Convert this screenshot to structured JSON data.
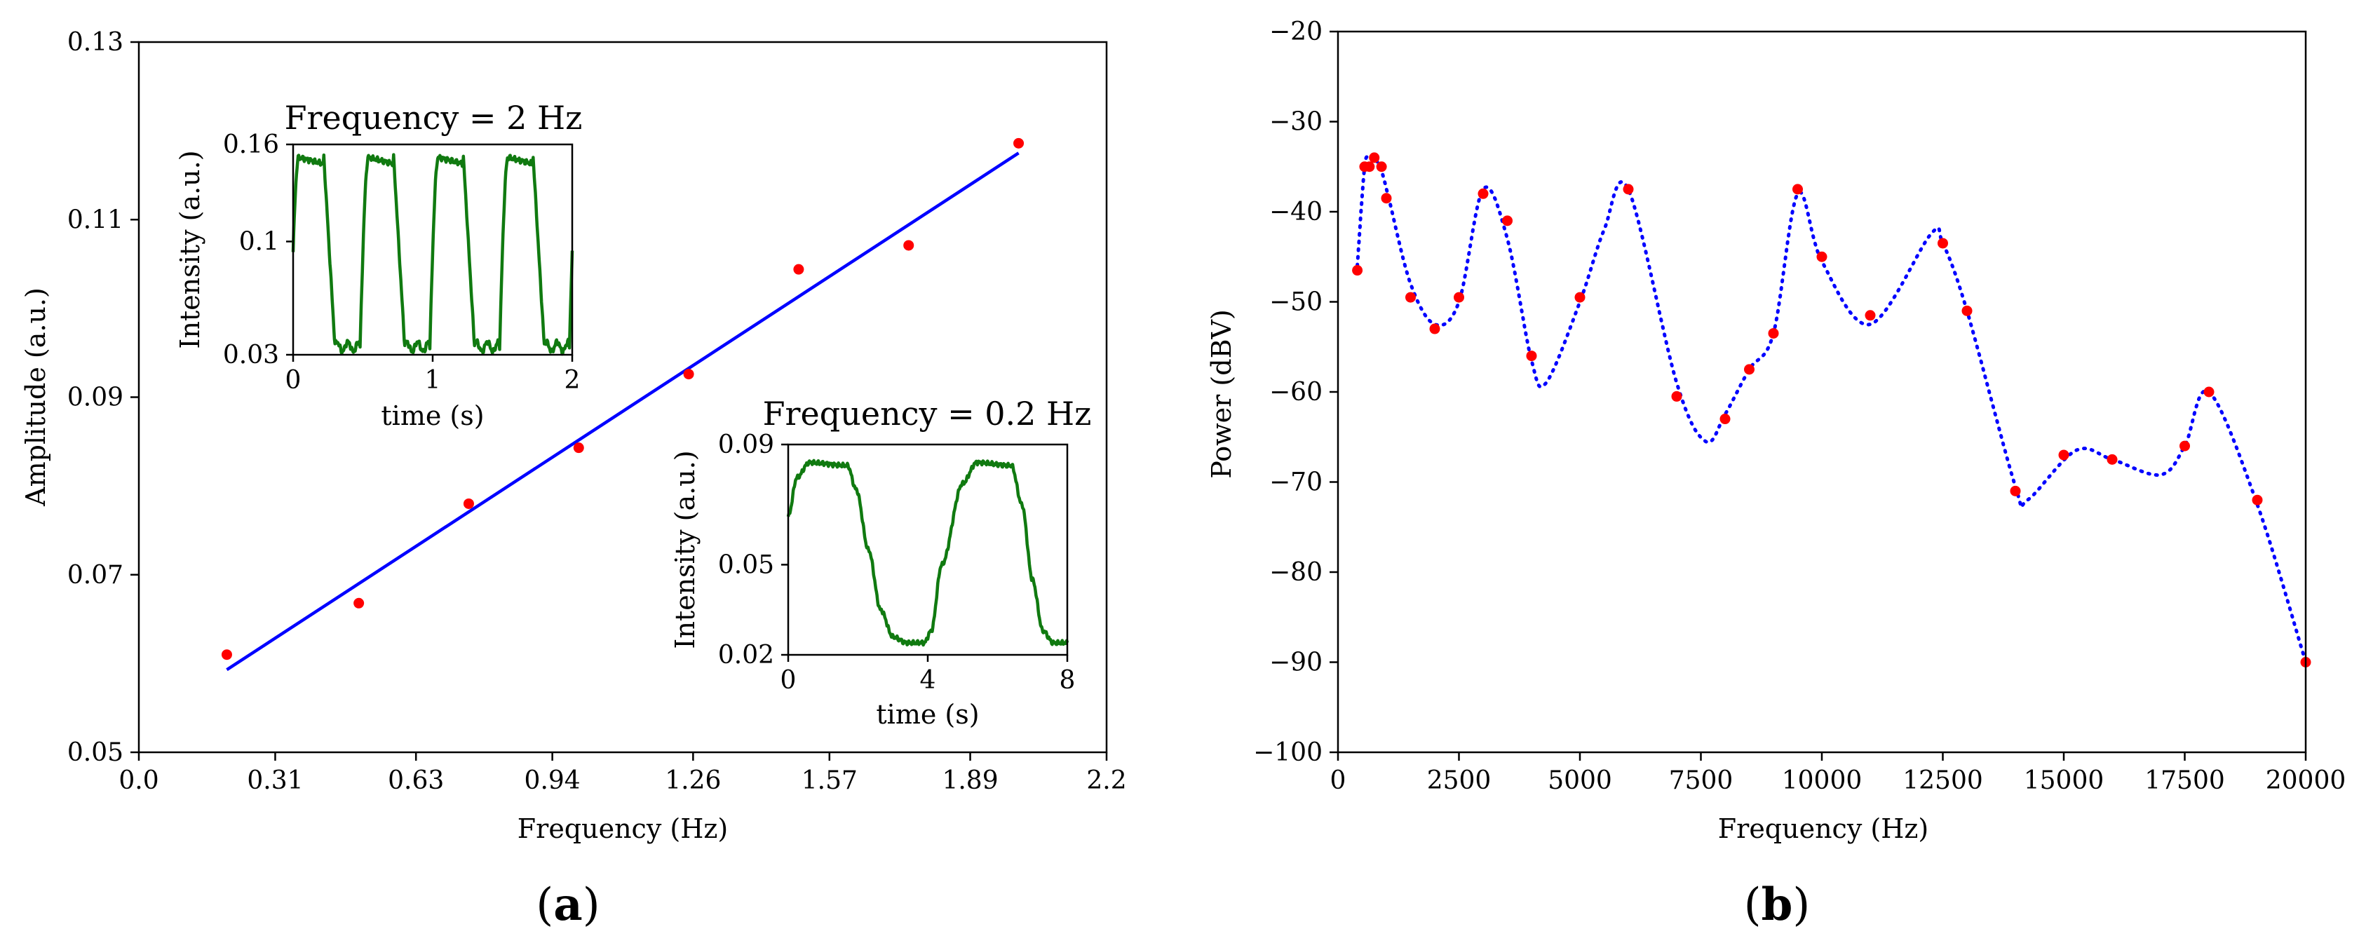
{
  "colors": {
    "fit_line": "#0000ff",
    "points": "#ff0000",
    "inset_trace": "#107a10",
    "dotted_fit": "#0000ff"
  },
  "chart_data": [
    {
      "id": "a",
      "type": "scatter",
      "panel_label_left": "(",
      "panel_label_main": "a",
      "panel_label_right": ")",
      "xlabel": "Frequency (Hz)",
      "ylabel": "Amplitude (a.u.)",
      "xlim": [
        0.0,
        2.2
      ],
      "ylim": [
        0.05,
        0.13
      ],
      "xticks": [
        0.0,
        0.31,
        0.63,
        0.94,
        1.26,
        1.57,
        1.89,
        2.2
      ],
      "xtick_labels": [
        "0.0",
        "0.31",
        "0.63",
        "0.94",
        "1.26",
        "1.57",
        "1.89",
        "2.2"
      ],
      "yticks": [
        0.05,
        0.07,
        0.09,
        0.11,
        0.13
      ],
      "ytick_labels": [
        "0.05",
        "0.07",
        "0.09",
        "0.11",
        "0.13"
      ],
      "points": {
        "x": [
          0.2,
          0.5,
          0.75,
          1.0,
          1.25,
          1.5,
          1.75,
          2.0
        ],
        "y": [
          0.061,
          0.0668,
          0.078,
          0.0843,
          0.0926,
          0.1044,
          0.1071,
          0.1186
        ]
      },
      "fit_line": {
        "x": [
          0.2,
          2.0
        ],
        "y": [
          0.0593,
          0.1175
        ]
      },
      "insets": [
        {
          "id": "inset-2hz",
          "title": "Frequency = 2 Hz",
          "xlabel": "time (s)",
          "ylabel": "Intensity (a.u.)",
          "xlim": [
            0,
            2
          ],
          "ylim": [
            0.03,
            0.16
          ],
          "xticks": [
            0,
            1,
            2
          ],
          "xtick_labels": [
            "0",
            "1",
            "2"
          ],
          "yticks": [
            0.03,
            0.1,
            0.16
          ],
          "ytick_labels": [
            "0.03",
            "0.1",
            "0.16"
          ],
          "trace": {
            "period": 0.5,
            "phase": 0.02,
            "high": 0.152,
            "low": 0.035,
            "high_fraction": 0.48,
            "rise": 0.06,
            "fall": 0.08,
            "t_max": 2
          }
        },
        {
          "id": "inset-02hz",
          "title": "Frequency = 0.2 Hz",
          "xlabel": "time (s)",
          "ylabel": "Intensity (a.u.)",
          "xlim": [
            0,
            8
          ],
          "ylim": [
            0.02,
            0.09
          ],
          "xticks": [
            0,
            4,
            8
          ],
          "xtick_labels": [
            "0",
            "4",
            "8"
          ],
          "yticks": [
            0.02,
            0.05,
            0.09
          ],
          "ytick_labels": [
            "0.02",
            "0.05",
            "0.09"
          ],
          "trace": {
            "knots_t": [
              0,
              0.25,
              0.6,
              1.7,
              1.95,
              2.3,
              2.65,
              3.0,
              3.4,
              3.9,
              4.1,
              4.4,
              5.0,
              5.4,
              6.4,
              6.7,
              7.0,
              7.3,
              7.6,
              8.0
            ],
            "knots_y": [
              0.066,
              0.079,
              0.084,
              0.083,
              0.075,
              0.055,
              0.035,
              0.026,
              0.024,
              0.024,
              0.028,
              0.05,
              0.077,
              0.084,
              0.083,
              0.07,
              0.045,
              0.028,
              0.024,
              0.024
            ]
          }
        }
      ]
    },
    {
      "id": "b",
      "type": "scatter",
      "panel_label_left": "(",
      "panel_label_main": "b",
      "panel_label_right": ")",
      "xlabel": "Frequency (Hz)",
      "ylabel": "Power (dBV)",
      "xlim": [
        0,
        20000
      ],
      "ylim": [
        -100,
        -20
      ],
      "xticks": [
        0,
        2500,
        5000,
        7500,
        10000,
        12500,
        15000,
        17500,
        20000
      ],
      "xtick_labels": [
        "0",
        "2500",
        "5000",
        "7500",
        "10000",
        "12500",
        "15000",
        "17500",
        "20000"
      ],
      "yticks": [
        -100,
        -90,
        -80,
        -70,
        -60,
        -50,
        -40,
        -30,
        -20
      ],
      "ytick_labels": [
        "−100",
        "−90",
        "−80",
        "−70",
        "−60",
        "−50",
        "−40",
        "−30",
        "−20"
      ],
      "points": {
        "x": [
          400,
          550,
          650,
          750,
          900,
          1000,
          1500,
          2000,
          2500,
          3000,
          3500,
          4000,
          5000,
          6000,
          7000,
          8000,
          8500,
          9000,
          9500,
          10000,
          11000,
          12500,
          13000,
          14000,
          15000,
          16000,
          17500,
          18000,
          19000,
          20000
        ],
        "y": [
          -46.5,
          -35,
          -35,
          -34,
          -35,
          -38.5,
          -49.5,
          -53,
          -49.5,
          -38,
          -41,
          -56,
          -49.5,
          -37.5,
          -60.5,
          -63,
          -57.5,
          -53.5,
          -37.5,
          -45,
          -51.5,
          -43.5,
          -51,
          -71,
          -67,
          -67.5,
          -66,
          -60,
          -72,
          -90
        ]
      },
      "fit_curve": {
        "x": [
          400,
          550,
          650,
          750,
          900,
          1050,
          1500,
          2000,
          2500,
          3000,
          3500,
          4000,
          4300,
          5000,
          5500,
          6000,
          7000,
          7600,
          8000,
          8500,
          9000,
          9500,
          10000,
          11000,
          12250,
          12500,
          13000,
          14000,
          14250,
          15250,
          16000,
          17000,
          17500,
          18000,
          19000,
          20000
        ],
        "y": [
          -46,
          -35,
          -34.2,
          -34,
          -35.5,
          -38.5,
          -48,
          -52.5,
          -50,
          -37.5,
          -43,
          -56.5,
          -59,
          -50,
          -42,
          -37.5,
          -59,
          -65.5,
          -62.5,
          -57.5,
          -53.5,
          -38,
          -45.5,
          -52.5,
          -42.5,
          -43.5,
          -51,
          -70.5,
          -72,
          -66.5,
          -67.5,
          -69.2,
          -66,
          -60,
          -72.5,
          -90
        ]
      }
    }
  ]
}
